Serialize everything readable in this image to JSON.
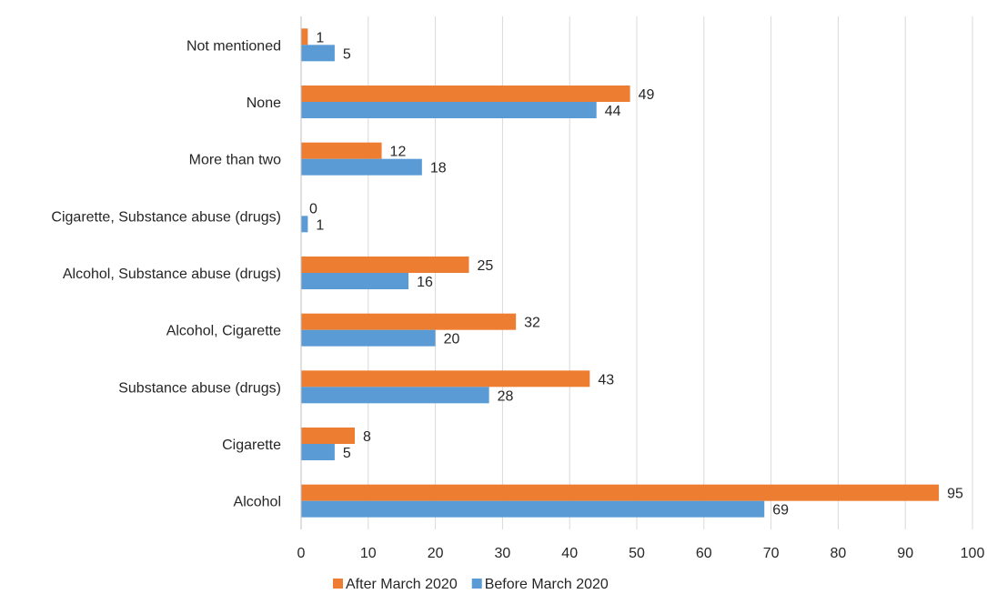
{
  "chart_data": {
    "type": "bar",
    "orientation": "horizontal",
    "categories": [
      "Not mentioned",
      "None",
      "More than two",
      "Cigarette, Substance abuse (drugs)",
      "Alcohol, Substance abuse (drugs)",
      "Alcohol, Cigarette",
      "Substance abuse (drugs)",
      "Cigarette",
      "Alcohol"
    ],
    "series": [
      {
        "name": "After March 2020",
        "color": "#ed7d31",
        "values": [
          1,
          49,
          12,
          0,
          25,
          32,
          43,
          8,
          95
        ]
      },
      {
        "name": "Before March 2020",
        "color": "#5b9bd5",
        "values": [
          5,
          44,
          18,
          1,
          16,
          20,
          28,
          5,
          69
        ]
      }
    ],
    "xlim": [
      0,
      100
    ],
    "xticks": [
      "0",
      "10",
      "20",
      "30",
      "40",
      "50",
      "60",
      "70",
      "80",
      "90",
      "100"
    ],
    "grid": "vertical",
    "legend_position": "bottom",
    "title": "",
    "xlabel": "",
    "ylabel": ""
  }
}
